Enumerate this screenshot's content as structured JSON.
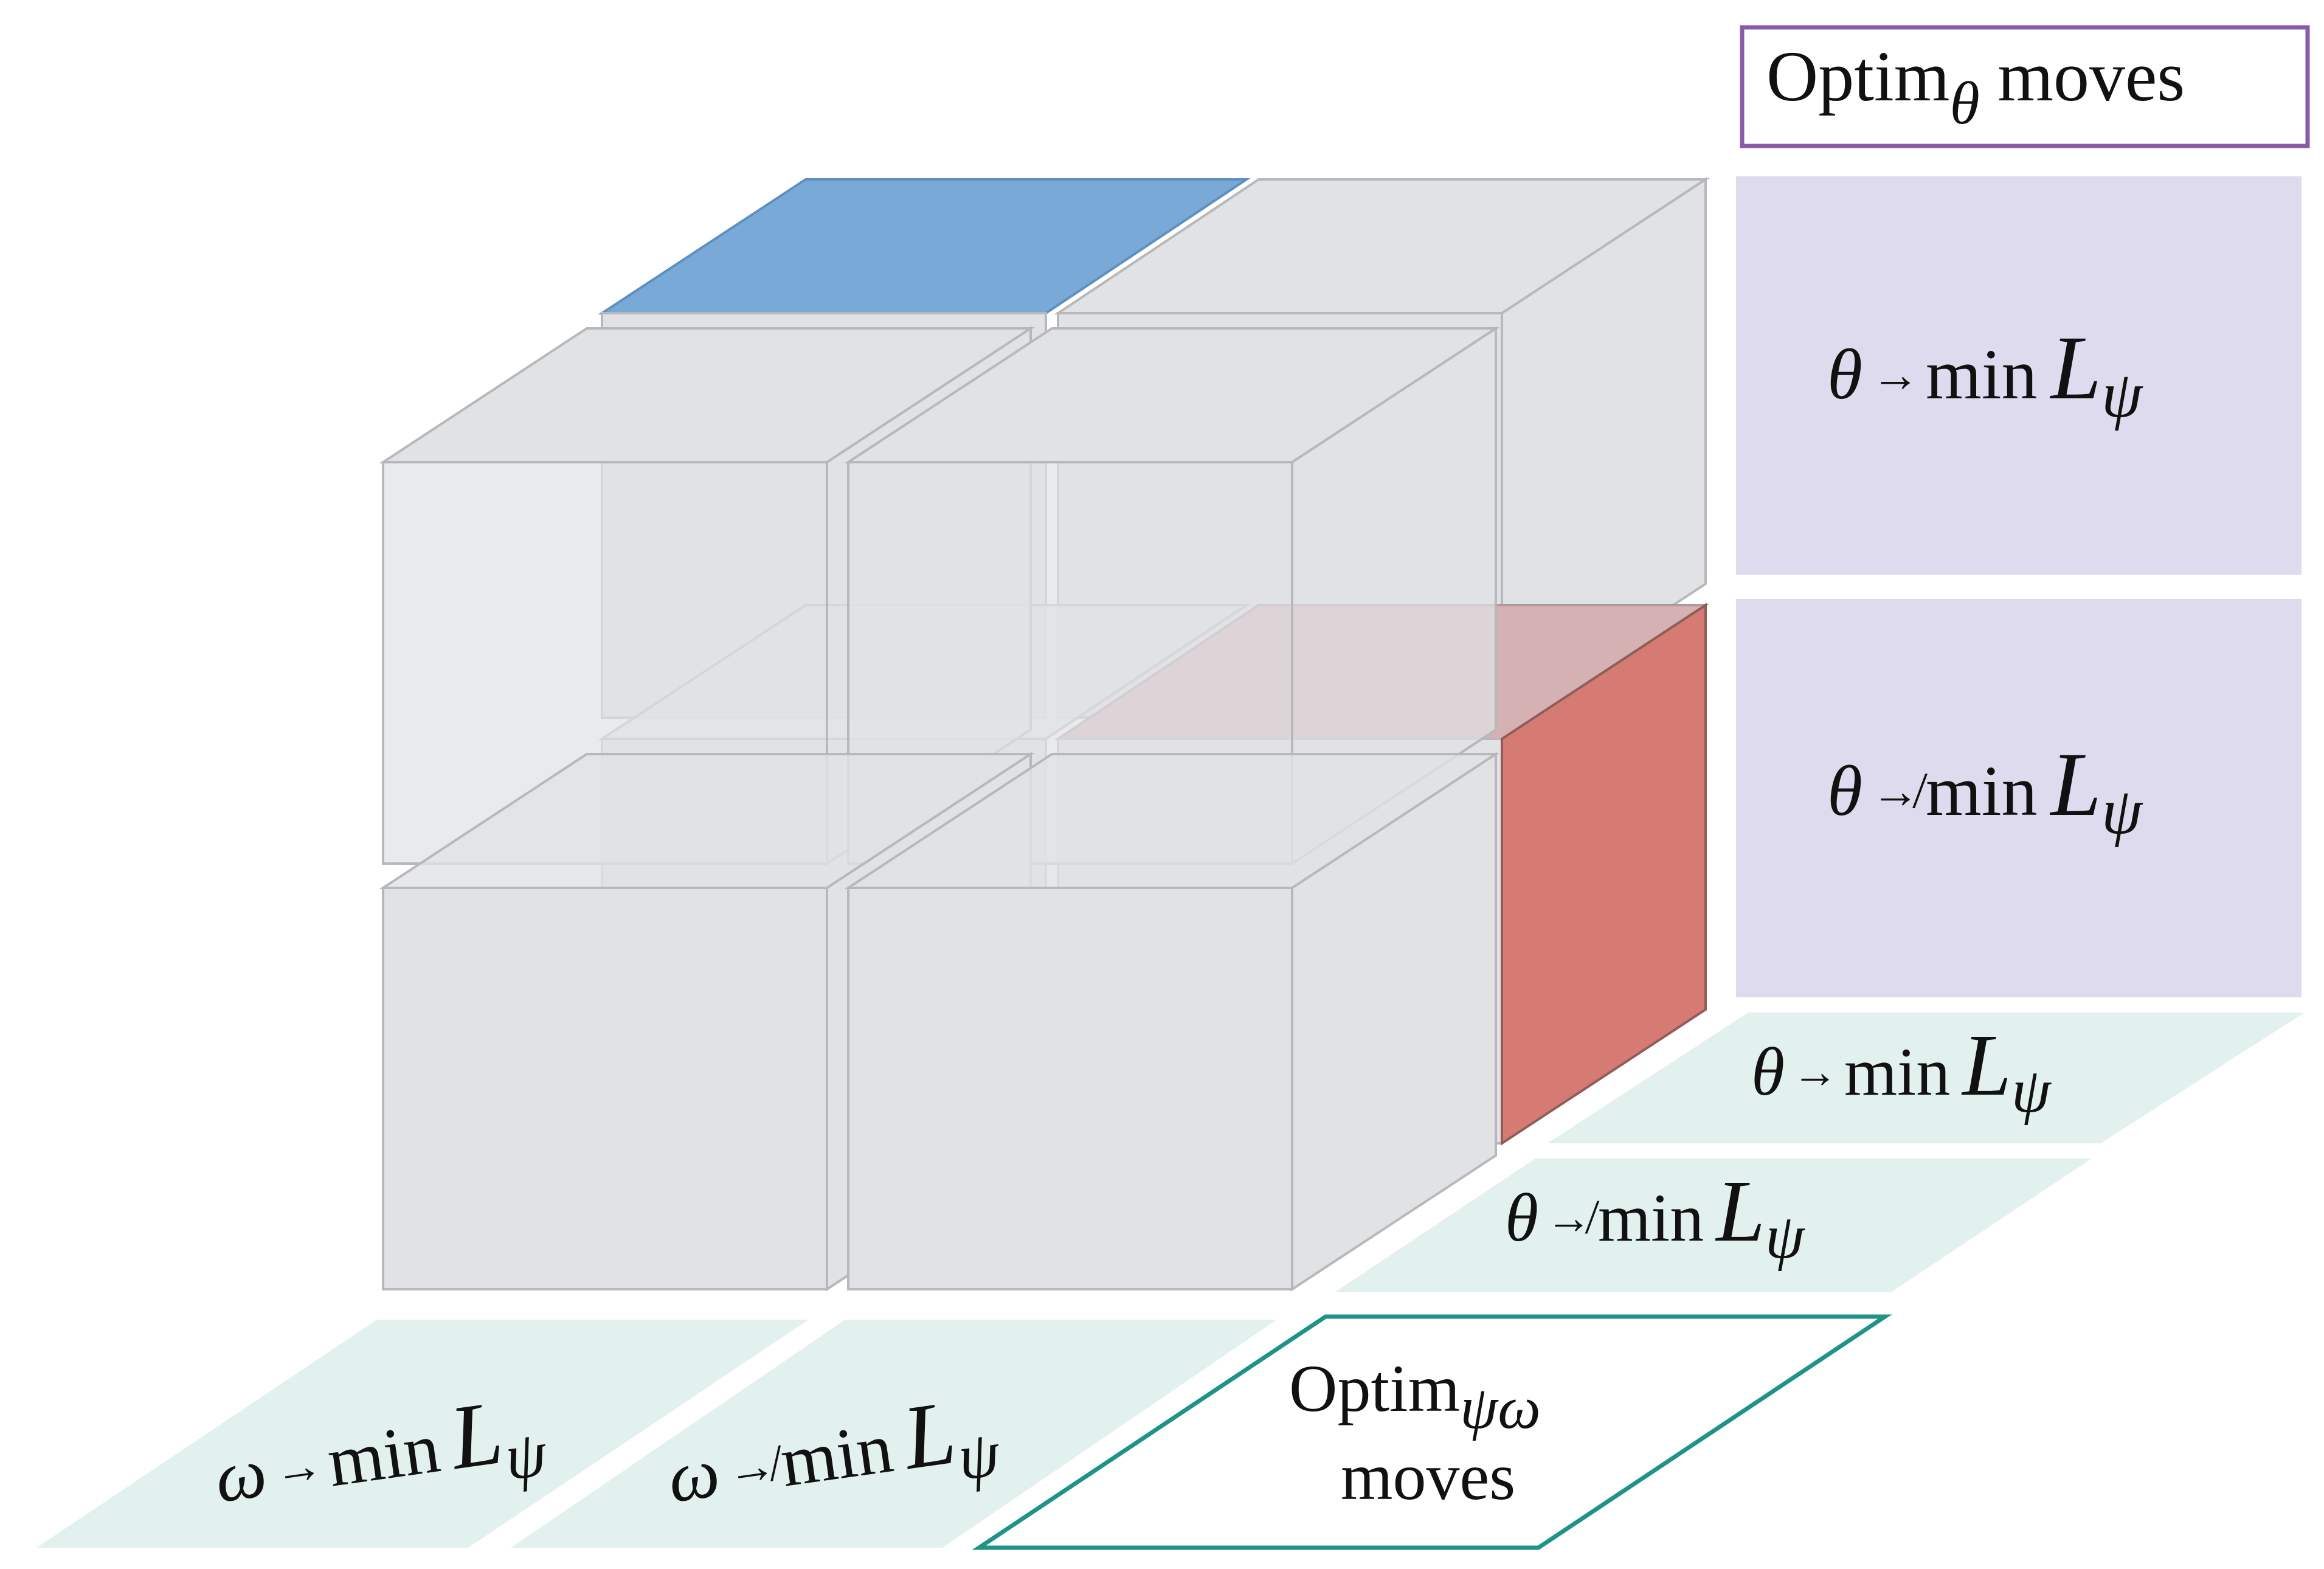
{
  "colors": {
    "cube_face": "#e1e2e4",
    "cube_edge": "#b7b8bb",
    "blue_top": "#78a9d7",
    "red_face": "#d57b74",
    "red_top": "#d5b1b3",
    "theta_panel": "#dedbee",
    "theta_border": "#8a5aa8",
    "ground_tile": "#e2f1ee",
    "psi_border": "#1e9389",
    "text": "#111111"
  },
  "theta_header": {
    "label": "Optim",
    "subscript": "θ",
    "suffix": " moves"
  },
  "theta_panels": [
    {
      "var": "θ",
      "arrow": "→",
      "op": "min",
      "loss": "L",
      "sub": "ψ"
    },
    {
      "var": "θ",
      "arrow": "↛",
      "op": "min",
      "loss": "L",
      "sub": "ψ"
    }
  ],
  "depth_tiles": [
    {
      "var": "θ",
      "arrow": "→",
      "op": "min",
      "loss": "L",
      "sub": "ψ"
    },
    {
      "var": "θ",
      "arrow": "↛",
      "op": "min",
      "loss": "L",
      "sub": "ψ"
    }
  ],
  "omega_tiles": [
    {
      "var": "ω",
      "arrow": "→",
      "op": "min",
      "loss": "L",
      "sub": "ψ"
    },
    {
      "var": "ω",
      "arrow": "↛",
      "op": "min",
      "loss": "L",
      "sub": "ψ"
    }
  ],
  "psi_box": {
    "label": "Optim",
    "subscript": "ψω",
    "line2": "moves"
  }
}
